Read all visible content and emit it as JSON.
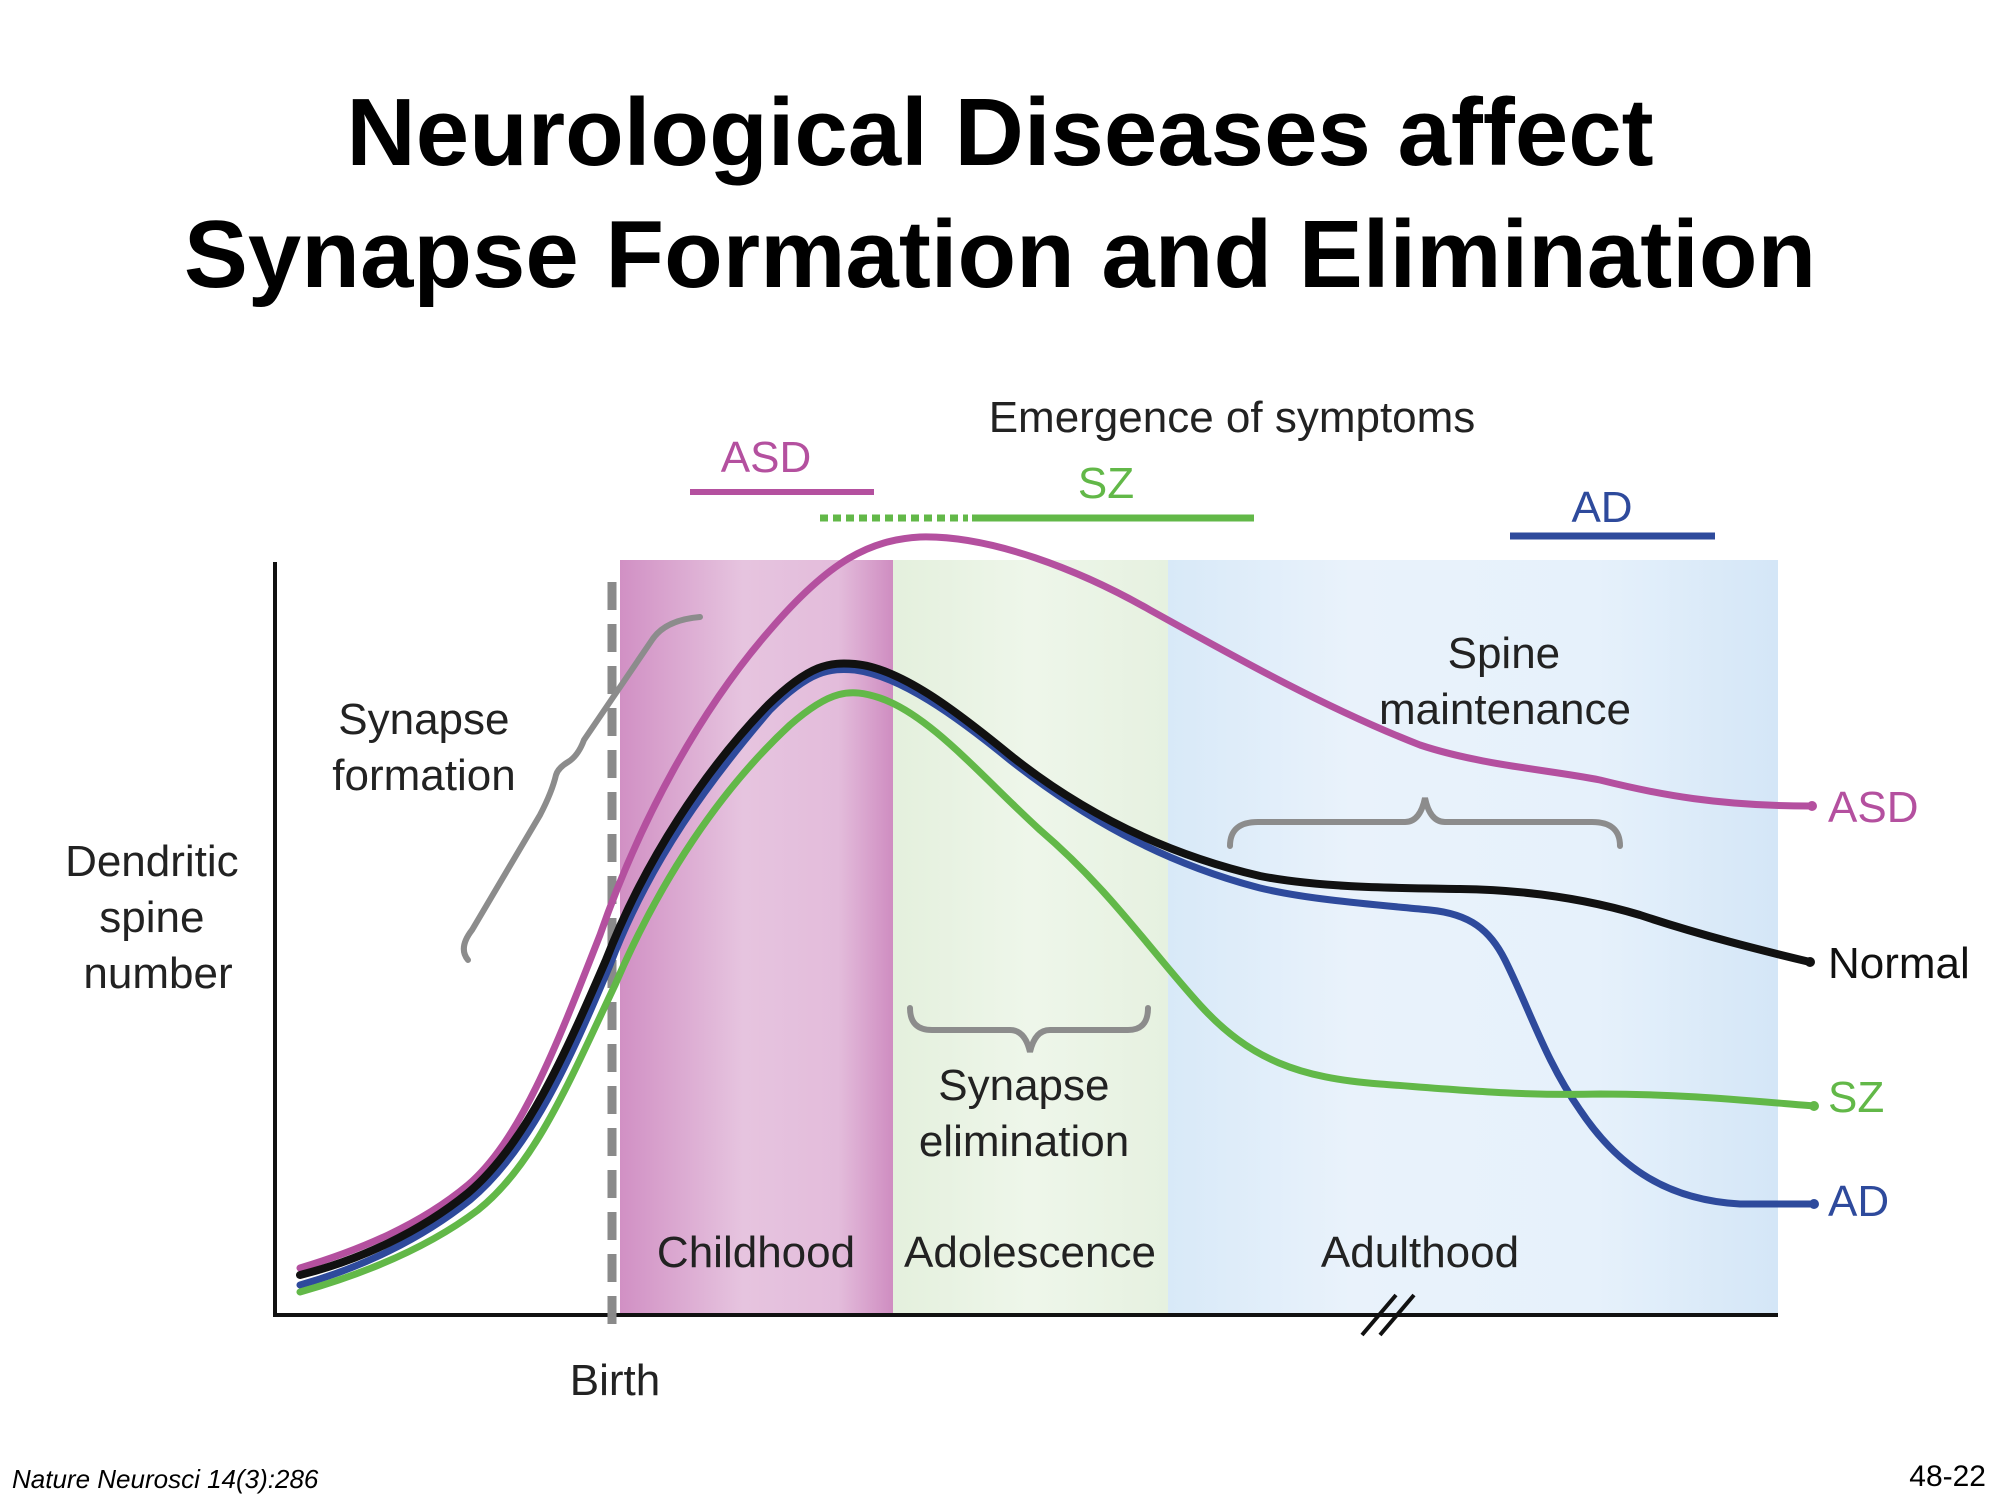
{
  "slide": {
    "title_line1": "Neurological Diseases affect",
    "title_line2": "Synapse Formation and Elimination",
    "source": "Nature Neurosci 14(3):286",
    "page_number": "48-22"
  },
  "chart_data": {
    "type": "line",
    "title": "",
    "ylabel": "Dendritic spine number",
    "xlabel": "",
    "birth_label": "Birth",
    "emergence_label": "Emergence of symptoms",
    "stages": [
      {
        "name": "Childhood",
        "color": "#cf8fc2"
      },
      {
        "name": "Adolescence",
        "color": "#e3f0dc"
      },
      {
        "name": "Adulthood",
        "color": "#d9e9f8"
      }
    ],
    "phase_annotations": [
      "Synapse formation",
      "Synapse elimination",
      "Spine maintenance"
    ],
    "symptom_bars": [
      {
        "name": "ASD",
        "color": "#b4509f"
      },
      {
        "name": "SZ",
        "color": "#62b848"
      },
      {
        "name": "AD",
        "color": "#2e4a9c"
      }
    ],
    "series": [
      {
        "name": "ASD",
        "color": "#b4509f"
      },
      {
        "name": "Normal",
        "color": "#111111"
      },
      {
        "name": "SZ",
        "color": "#62b848"
      },
      {
        "name": "AD",
        "color": "#2e4a9c"
      }
    ],
    "axis_break": true,
    "grid": false
  }
}
